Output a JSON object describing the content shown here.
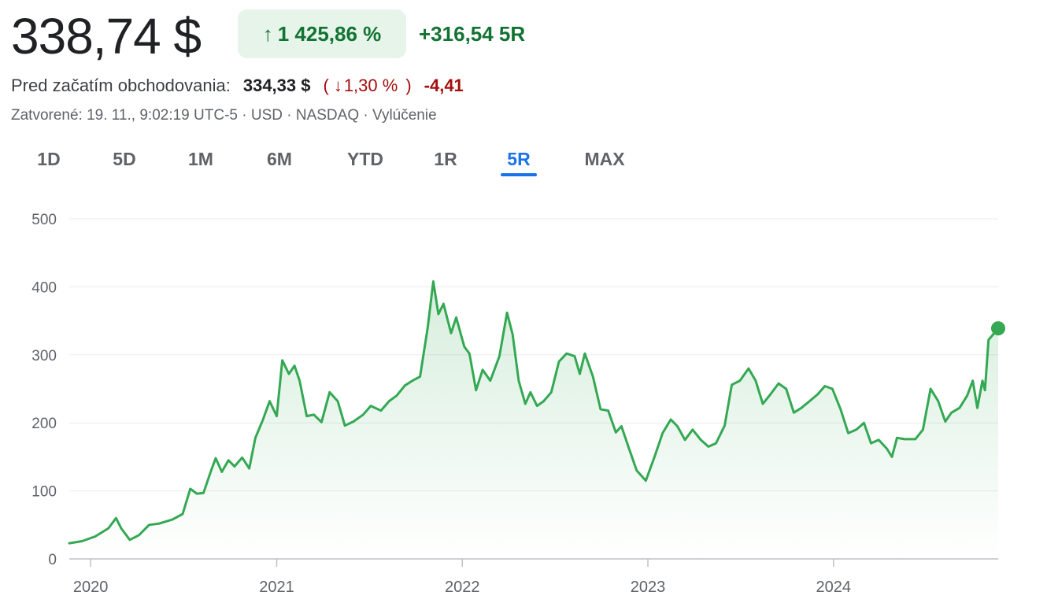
{
  "quote": {
    "price": "338,74 $",
    "change_pct": "1 425,86 %",
    "change_abs": "+316,54 5R",
    "up_arrow": "↑"
  },
  "premarket": {
    "label": "Pred začatím obchodovania:",
    "price": "334,33 $",
    "open_paren": "(",
    "down_arrow": "↓",
    "change_pct": "1,30 %",
    "close_paren": ")",
    "change_abs": "-4,41"
  },
  "meta": "Zatvorené: 19. 11., 9:02:19 UTC-5 · USD · NASDAQ · Vylúčenie",
  "ranges": [
    "1D",
    "5D",
    "1M",
    "6M",
    "YTD",
    "1R",
    "5R",
    "MAX"
  ],
  "active_range": "5R",
  "colors": {
    "up": "#137333",
    "down": "#a50e0e",
    "line": "#34a853",
    "accent": "#1a73e8"
  },
  "chart_data": {
    "type": "area",
    "x_tick_labels": [
      "2020",
      "2021",
      "2022",
      "2023",
      "2024"
    ],
    "y_tick_labels": [
      "0",
      "100",
      "200",
      "300",
      "400",
      "500"
    ],
    "ylim": [
      0,
      500
    ],
    "xlim": [
      "2019-11-20",
      "2024-11-20"
    ],
    "grid": true,
    "series": [
      {
        "points": [
          [
            "2019-11-20",
            23
          ],
          [
            "2019-12-15",
            26
          ],
          [
            "2020-01-10",
            33
          ],
          [
            "2020-02-05",
            45
          ],
          [
            "2020-02-20",
            60
          ],
          [
            "2020-03-01",
            45
          ],
          [
            "2020-03-18",
            28
          ],
          [
            "2020-04-05",
            35
          ],
          [
            "2020-04-25",
            50
          ],
          [
            "2020-05-15",
            52
          ],
          [
            "2020-06-10",
            58
          ],
          [
            "2020-06-30",
            66
          ],
          [
            "2020-07-15",
            103
          ],
          [
            "2020-07-28",
            96
          ],
          [
            "2020-08-10",
            97
          ],
          [
            "2020-08-25",
            130
          ],
          [
            "2020-09-03",
            148
          ],
          [
            "2020-09-15",
            128
          ],
          [
            "2020-09-28",
            145
          ],
          [
            "2020-10-10",
            136
          ],
          [
            "2020-10-25",
            149
          ],
          [
            "2020-11-08",
            133
          ],
          [
            "2020-11-20",
            178
          ],
          [
            "2020-12-05",
            205
          ],
          [
            "2020-12-18",
            232
          ],
          [
            "2021-01-01",
            210
          ],
          [
            "2021-01-12",
            292
          ],
          [
            "2021-01-25",
            272
          ],
          [
            "2021-02-05",
            284
          ],
          [
            "2021-02-15",
            262
          ],
          [
            "2021-03-01",
            210
          ],
          [
            "2021-03-15",
            212
          ],
          [
            "2021-03-30",
            201
          ],
          [
            "2021-04-15",
            245
          ],
          [
            "2021-05-01",
            232
          ],
          [
            "2021-05-15",
            196
          ],
          [
            "2021-06-01",
            202
          ],
          [
            "2021-06-20",
            212
          ],
          [
            "2021-07-05",
            225
          ],
          [
            "2021-07-25",
            218
          ],
          [
            "2021-08-10",
            232
          ],
          [
            "2021-08-25",
            240
          ],
          [
            "2021-09-10",
            255
          ],
          [
            "2021-09-25",
            262
          ],
          [
            "2021-10-10",
            268
          ],
          [
            "2021-10-25",
            340
          ],
          [
            "2021-11-05",
            408
          ],
          [
            "2021-11-15",
            360
          ],
          [
            "2021-11-25",
            375
          ],
          [
            "2021-12-10",
            332
          ],
          [
            "2021-12-20",
            355
          ],
          [
            "2022-01-05",
            312
          ],
          [
            "2022-01-15",
            302
          ],
          [
            "2022-01-28",
            248
          ],
          [
            "2022-02-10",
            278
          ],
          [
            "2022-02-25",
            262
          ],
          [
            "2022-03-15",
            298
          ],
          [
            "2022-03-30",
            362
          ],
          [
            "2022-04-10",
            330
          ],
          [
            "2022-04-22",
            262
          ],
          [
            "2022-05-05",
            228
          ],
          [
            "2022-05-15",
            245
          ],
          [
            "2022-05-28",
            225
          ],
          [
            "2022-06-10",
            232
          ],
          [
            "2022-06-25",
            245
          ],
          [
            "2022-07-10",
            290
          ],
          [
            "2022-07-25",
            302
          ],
          [
            "2022-08-10",
            298
          ],
          [
            "2022-08-20",
            272
          ],
          [
            "2022-08-30",
            302
          ],
          [
            "2022-09-15",
            268
          ],
          [
            "2022-09-30",
            220
          ],
          [
            "2022-10-15",
            218
          ],
          [
            "2022-10-30",
            186
          ],
          [
            "2022-11-10",
            195
          ],
          [
            "2022-11-25",
            162
          ],
          [
            "2022-12-10",
            130
          ],
          [
            "2022-12-28",
            115
          ],
          [
            "2023-01-15",
            152
          ],
          [
            "2023-01-30",
            185
          ],
          [
            "2023-02-15",
            205
          ],
          [
            "2023-02-28",
            195
          ],
          [
            "2023-03-15",
            175
          ],
          [
            "2023-03-30",
            190
          ],
          [
            "2023-04-15",
            175
          ],
          [
            "2023-04-30",
            165
          ],
          [
            "2023-05-15",
            170
          ],
          [
            "2023-06-01",
            196
          ],
          [
            "2023-06-15",
            256
          ],
          [
            "2023-07-01",
            262
          ],
          [
            "2023-07-18",
            280
          ],
          [
            "2023-08-01",
            262
          ],
          [
            "2023-08-15",
            228
          ],
          [
            "2023-08-30",
            242
          ],
          [
            "2023-09-15",
            258
          ],
          [
            "2023-09-30",
            250
          ],
          [
            "2023-10-15",
            215
          ],
          [
            "2023-10-30",
            222
          ],
          [
            "2023-11-15",
            232
          ],
          [
            "2023-12-01",
            242
          ],
          [
            "2023-12-15",
            254
          ],
          [
            "2023-12-30",
            250
          ],
          [
            "2024-01-15",
            220
          ],
          [
            "2024-01-30",
            185
          ],
          [
            "2024-02-15",
            190
          ],
          [
            "2024-03-01",
            200
          ],
          [
            "2024-03-15",
            170
          ],
          [
            "2024-03-30",
            175
          ],
          [
            "2024-04-15",
            162
          ],
          [
            "2024-04-25",
            150
          ],
          [
            "2024-05-05",
            178
          ],
          [
            "2024-05-20",
            176
          ],
          [
            "2024-06-10",
            176
          ],
          [
            "2024-06-25",
            190
          ],
          [
            "2024-07-10",
            250
          ],
          [
            "2024-07-25",
            232
          ],
          [
            "2024-08-08",
            202
          ],
          [
            "2024-08-20",
            215
          ],
          [
            "2024-09-05",
            222
          ],
          [
            "2024-09-20",
            240
          ],
          [
            "2024-10-01",
            262
          ],
          [
            "2024-10-10",
            222
          ],
          [
            "2024-10-20",
            262
          ],
          [
            "2024-10-25",
            248
          ],
          [
            "2024-11-01",
            322
          ],
          [
            "2024-11-10",
            330
          ],
          [
            "2024-11-20",
            339
          ]
        ]
      }
    ]
  }
}
